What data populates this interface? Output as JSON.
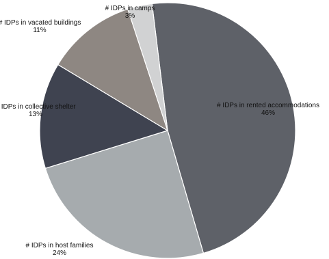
{
  "chart_data": {
    "type": "pie",
    "start_angle_deg": -7,
    "direction": "clockwise",
    "legend": "none",
    "slices": [
      {
        "label": "# IDPs in rented accommodations",
        "percent_label": "46%",
        "value": 46,
        "color": "#5e6168"
      },
      {
        "label": "# IDPs in host families",
        "percent_label": "24%",
        "value": 24,
        "color": "#a6abae"
      },
      {
        "label": "# IDPs in collective shelter",
        "percent_label": "13%",
        "value": 13,
        "color": "#3f4350"
      },
      {
        "label": "# IDPs in vacated buildings",
        "percent_label": "11%",
        "value": 11,
        "color": "#8e8782"
      },
      {
        "label": "# IDPs in camps",
        "percent_label": "3%",
        "value": 3,
        "color": "#d1d2d3"
      }
    ]
  }
}
